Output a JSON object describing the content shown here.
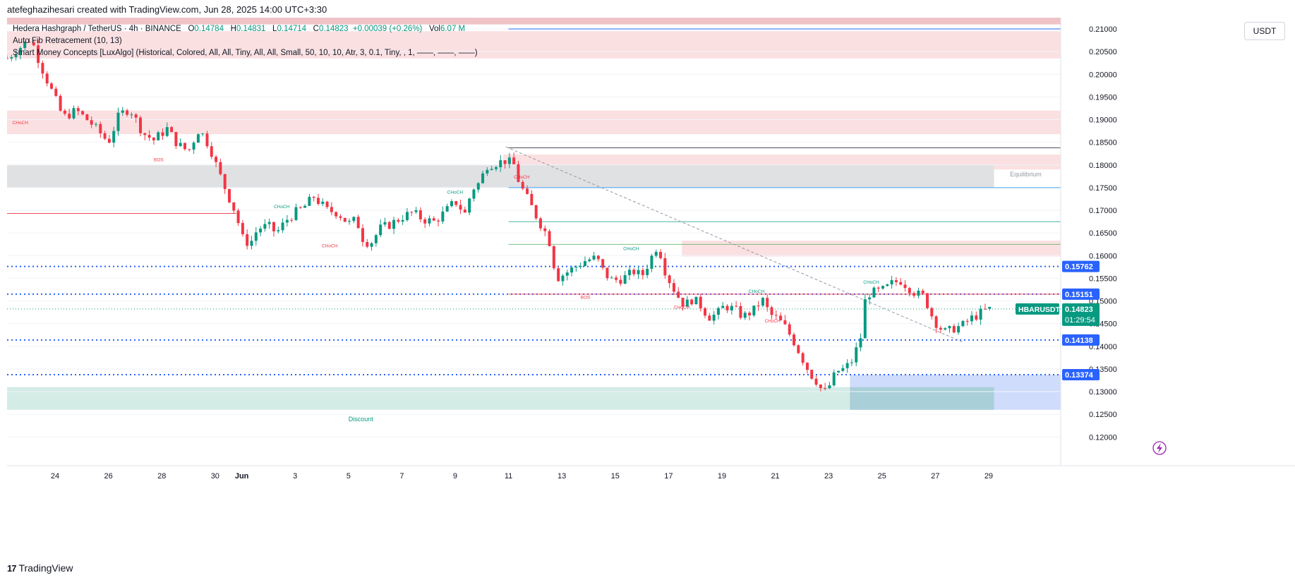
{
  "header": {
    "credit": "atefeghazihesari created with TradingView.com, Jun 28, 2025 14:00 UTC+3:30"
  },
  "legend": {
    "symbol": "Hedera Hashgraph / TetherUS · 4h · BINANCE",
    "o_label": "O",
    "o_value": "0.14784",
    "h_label": "H",
    "h_value": "0.14831",
    "l_label": "L",
    "l_value": "0.14714",
    "c_label": "C",
    "c_value": "0.14823",
    "change": "+0.00039 (+0.26%)",
    "vol_label": "Vol",
    "vol_value": "6.07 M",
    "indicator1": "Auto Fib Retracement (10, 13)",
    "indicator2": "Smart Money Concepts [LuxAlgo] (Historical, Colored, All, All, Tiny, All, All, Small, 50, 10, 10, Atr, 3, 0.1, Tiny, , 1, ——, ——, ——)"
  },
  "currency_button": "USDT",
  "branding": {
    "logo_text": "TradingView",
    "logo_mark": "17"
  },
  "colors": {
    "up": "#089981",
    "down": "#f23645",
    "supply_zone": "#f7c9cc",
    "demand_zone": "#c8e8e1",
    "equilibrium_zone": "#d9dadd",
    "price_tag": "#2962ff",
    "current_tag": "#089981"
  },
  "chart_data": {
    "type": "candlestick",
    "title": "HBARUSDT 4h",
    "ylim": [
      0.116,
      0.2125
    ],
    "y_ticks": [
      "0.21000",
      "0.20500",
      "0.20000",
      "0.19500",
      "0.19000",
      "0.18500",
      "0.18000",
      "0.17500",
      "0.17000",
      "0.16500",
      "0.16000",
      "0.15500",
      "0.15000",
      "0.14500",
      "0.14000",
      "0.13500",
      "0.13000",
      "0.12500",
      "0.12000"
    ],
    "x_ticks": [
      {
        "label": "24",
        "day": 0
      },
      {
        "label": "26",
        "day": 2
      },
      {
        "label": "28",
        "day": 4
      },
      {
        "label": "30",
        "day": 6
      },
      {
        "label": "Jun",
        "day": 7
      },
      {
        "label": "3",
        "day": 9
      },
      {
        "label": "5",
        "day": 11
      },
      {
        "label": "7",
        "day": 13
      },
      {
        "label": "9",
        "day": 15
      },
      {
        "label": "11",
        "day": 17
      },
      {
        "label": "13",
        "day": 19
      },
      {
        "label": "15",
        "day": 21
      },
      {
        "label": "17",
        "day": 23
      },
      {
        "label": "19",
        "day": 25
      },
      {
        "label": "21",
        "day": 27
      },
      {
        "label": "23",
        "day": 29
      },
      {
        "label": "25",
        "day": 31
      },
      {
        "label": "27",
        "day": 33
      },
      {
        "label": "29",
        "day": 35
      }
    ],
    "x_domain_days": [
      -1.8,
      37.7
    ],
    "close_path": [
      [
        -1.8,
        0.2035
      ],
      [
        -1.3,
        0.206
      ],
      [
        -0.9,
        0.208
      ],
      [
        -0.7,
        0.2045
      ],
      [
        -0.4,
        0.2
      ],
      [
        -0.1,
        0.196
      ],
      [
        0.3,
        0.1905
      ],
      [
        0.8,
        0.192
      ],
      [
        1.3,
        0.1895
      ],
      [
        1.7,
        0.187
      ],
      [
        2.0,
        0.185
      ],
      [
        2.4,
        0.191
      ],
      [
        2.8,
        0.1925
      ],
      [
        3.3,
        0.187
      ],
      [
        3.7,
        0.1855
      ],
      [
        4.2,
        0.188
      ],
      [
        4.6,
        0.1845
      ],
      [
        5.0,
        0.183
      ],
      [
        5.4,
        0.188
      ],
      [
        5.8,
        0.184
      ],
      [
        6.1,
        0.179
      ],
      [
        6.4,
        0.1745
      ],
      [
        6.8,
        0.169
      ],
      [
        7.0,
        0.164
      ],
      [
        7.3,
        0.1625
      ],
      [
        7.6,
        0.166
      ],
      [
        8.0,
        0.1665
      ],
      [
        8.3,
        0.165
      ],
      [
        8.7,
        0.168
      ],
      [
        9.0,
        0.1695
      ],
      [
        9.3,
        0.1705
      ],
      [
        9.7,
        0.173
      ],
      [
        10.2,
        0.17
      ],
      [
        10.6,
        0.1695
      ],
      [
        11.0,
        0.167
      ],
      [
        11.3,
        0.168
      ],
      [
        11.5,
        0.164
      ],
      [
        11.8,
        0.1625
      ],
      [
        12.2,
        0.166
      ],
      [
        12.6,
        0.167
      ],
      [
        13.0,
        0.1685
      ],
      [
        13.4,
        0.1695
      ],
      [
        13.8,
        0.168
      ],
      [
        14.2,
        0.1675
      ],
      [
        14.6,
        0.1695
      ],
      [
        15.0,
        0.172
      ],
      [
        15.4,
        0.169
      ],
      [
        15.6,
        0.1745
      ],
      [
        15.9,
        0.176
      ],
      [
        16.2,
        0.18
      ],
      [
        16.6,
        0.1805
      ],
      [
        16.9,
        0.181
      ],
      [
        17.2,
        0.18
      ],
      [
        17.4,
        0.176
      ],
      [
        17.8,
        0.1715
      ],
      [
        18.1,
        0.168
      ],
      [
        18.5,
        0.164
      ],
      [
        18.8,
        0.155
      ],
      [
        19.1,
        0.156
      ],
      [
        19.5,
        0.1575
      ],
      [
        19.9,
        0.159
      ],
      [
        20.3,
        0.1595
      ],
      [
        20.6,
        0.156
      ],
      [
        20.9,
        0.1545
      ],
      [
        21.3,
        0.155
      ],
      [
        21.7,
        0.1565
      ],
      [
        22.0,
        0.1555
      ],
      [
        22.3,
        0.159
      ],
      [
        22.6,
        0.1625
      ],
      [
        22.9,
        0.156
      ],
      [
        23.3,
        0.1515
      ],
      [
        23.6,
        0.149
      ],
      [
        23.9,
        0.1505
      ],
      [
        24.2,
        0.149
      ],
      [
        24.5,
        0.1465
      ],
      [
        24.8,
        0.147
      ],
      [
        25.1,
        0.149
      ],
      [
        25.5,
        0.148
      ],
      [
        25.8,
        0.1465
      ],
      [
        26.2,
        0.148
      ],
      [
        26.5,
        0.1505
      ],
      [
        26.8,
        0.147
      ],
      [
        27.1,
        0.146
      ],
      [
        27.4,
        0.144
      ],
      [
        27.7,
        0.141
      ],
      [
        28.0,
        0.1375
      ],
      [
        28.3,
        0.134
      ],
      [
        28.6,
        0.132
      ],
      [
        28.8,
        0.1295
      ],
      [
        29.0,
        0.131
      ],
      [
        29.3,
        0.1345
      ],
      [
        29.6,
        0.135
      ],
      [
        29.9,
        0.137
      ],
      [
        30.2,
        0.142
      ],
      [
        30.4,
        0.1515
      ],
      [
        30.8,
        0.152
      ],
      [
        31.1,
        0.1525
      ],
      [
        31.4,
        0.154
      ],
      [
        31.7,
        0.1545
      ],
      [
        32.0,
        0.153
      ],
      [
        32.3,
        0.1515
      ],
      [
        32.6,
        0.151
      ],
      [
        32.8,
        0.1475
      ],
      [
        33.1,
        0.1445
      ],
      [
        33.4,
        0.143
      ],
      [
        33.7,
        0.144
      ],
      [
        34.0,
        0.1445
      ],
      [
        34.3,
        0.146
      ],
      [
        34.6,
        0.147
      ],
      [
        34.9,
        0.148
      ],
      [
        35.1,
        0.1482
      ]
    ],
    "zones": [
      {
        "name": "supply-zone-top",
        "y1": 0.2095,
        "y2": 0.2035,
        "d1": -1.8,
        "d2": 37.7,
        "color": "#fbe0e2"
      },
      {
        "name": "supply-zone-header",
        "y1": 0.2125,
        "y2": 0.211,
        "d1": -1.8,
        "d2": 37.7,
        "color": "#f0c3c7"
      },
      {
        "name": "supply-zone-2",
        "y1": 0.192,
        "y2": 0.1868,
        "d1": -1.8,
        "d2": 37.7,
        "color": "#fbe0e2"
      },
      {
        "name": "supply-zone-3",
        "y1": 0.1823,
        "y2": 0.179,
        "d1": 16.8,
        "d2": 37.7,
        "color": "#fbe0e2"
      },
      {
        "name": "equilibrium-zone",
        "y1": 0.18,
        "y2": 0.175,
        "d1": -1.8,
        "d2": 35.2,
        "color": "#e0e1e3"
      },
      {
        "name": "supply-zone-4",
        "y1": 0.1633,
        "y2": 0.1598,
        "d1": 23.5,
        "d2": 37.7,
        "color": "#fbe0e2"
      },
      {
        "name": "discount-zone",
        "y1": 0.131,
        "y2": 0.126,
        "d1": -1.8,
        "d2": 35.2,
        "color": "#d4ece6"
      },
      {
        "name": "position-zone-blue",
        "y1": 0.1337,
        "y2": 0.126,
        "d1": 29.8,
        "d2": 37.7,
        "color": "#cfdcfb"
      },
      {
        "name": "position-zone-teal",
        "y1": 0.131,
        "y2": 0.126,
        "d1": 29.8,
        "d2": 35.2,
        "color": "#a9cfd8"
      }
    ],
    "levels": [
      {
        "name": "fib-level-0",
        "y": 0.21,
        "d1": 17.0,
        "color": "#2962ff",
        "dash": "",
        "width": 1
      },
      {
        "name": "fib-level-1",
        "y": 0.1838,
        "d1": 17.0,
        "color": "#131722",
        "dash": "",
        "width": 0.8
      },
      {
        "name": "fib-level-2",
        "y": 0.175,
        "d1": 17.0,
        "color": "#2196f3",
        "dash": "",
        "width": 0.8
      },
      {
        "name": "fib-level-3",
        "y": 0.1675,
        "d1": 17.0,
        "color": "#089981",
        "dash": "",
        "width": 0.8
      },
      {
        "name": "fib-level-4",
        "y": 0.1625,
        "d1": 17.0,
        "color": "#4caf50",
        "dash": "",
        "width": 0.8
      },
      {
        "name": "red-level-left",
        "y": 0.1693,
        "d1": -1.8,
        "d2": 6.8,
        "color": "#f23645",
        "dash": "",
        "width": 0.8
      },
      {
        "name": "level-0.15762",
        "y": 0.15762,
        "d1": -1.8,
        "color": "#2962ff",
        "dash": "2,4",
        "width": 2
      },
      {
        "name": "level-0.15151",
        "y": 0.15151,
        "d1": -1.8,
        "color": "#2962ff",
        "dash": "2,4",
        "width": 2
      },
      {
        "name": "level-0.15151-red",
        "y": 0.15151,
        "d1": 17.0,
        "color": "#f23645",
        "dash": "",
        "width": 0.8
      },
      {
        "name": "level-0.14138",
        "y": 0.14138,
        "d1": -1.8,
        "color": "#2962ff",
        "dash": "2,4",
        "width": 2
      },
      {
        "name": "level-0.13374",
        "y": 0.13374,
        "d1": -1.8,
        "color": "#2962ff",
        "dash": "2,4",
        "width": 2
      },
      {
        "name": "current-price-line",
        "y": 0.14823,
        "d1": -1.8,
        "color": "#089981",
        "dash": "1,3",
        "width": 1
      }
    ],
    "trend_line": [
      [
        16.9,
        0.184
      ],
      [
        34.0,
        0.141
      ]
    ],
    "annotations": [
      {
        "text": "CHoCH",
        "day": -1.6,
        "y": 0.189,
        "color": "#f23645"
      },
      {
        "text": "BOS",
        "day": 3.7,
        "y": 0.1808,
        "color": "#f23645"
      },
      {
        "text": "CHoCH",
        "day": 8.2,
        "y": 0.1705,
        "color": "#089981"
      },
      {
        "text": "CHoCH",
        "day": 10.0,
        "y": 0.1618,
        "color": "#f23645"
      },
      {
        "text": "CHoCH",
        "day": 14.7,
        "y": 0.1737,
        "color": "#089981"
      },
      {
        "text": "CHoCH",
        "day": 17.2,
        "y": 0.177,
        "color": "#f23645"
      },
      {
        "text": "CHoCH",
        "day": 21.3,
        "y": 0.1612,
        "color": "#089981"
      },
      {
        "text": "BOS",
        "day": 19.7,
        "y": 0.1505,
        "color": "#f23645"
      },
      {
        "text": "CHoCH",
        "day": 23.2,
        "y": 0.1483,
        "color": "#f23645"
      },
      {
        "text": "CHoCH",
        "day": 26.0,
        "y": 0.1518,
        "color": "#089981"
      },
      {
        "text": "CHoCH",
        "day": 26.6,
        "y": 0.1453,
        "color": "#f23645"
      },
      {
        "text": "CHoCH",
        "day": 30.3,
        "y": 0.1538,
        "color": "#089981"
      },
      {
        "text": "Equilibrium",
        "day": 35.8,
        "y": 0.1775,
        "color": "#9598a1"
      },
      {
        "text": "Discount",
        "day": 11.0,
        "y": 0.1235,
        "color": "#089981"
      }
    ],
    "price_tags": [
      {
        "text": "0.15762",
        "y": 0.15762,
        "color": "#2962ff"
      },
      {
        "text": "0.15151",
        "y": 0.15151,
        "color": "#2962ff"
      },
      {
        "text": "0.14138",
        "y": 0.14138,
        "color": "#2962ff"
      },
      {
        "text": "0.13374",
        "y": 0.13374,
        "color": "#2962ff"
      }
    ],
    "current_price": {
      "symbol": "HBARUSDT",
      "price": "0.14823",
      "countdown": "01:29:54",
      "y": 0.14823
    },
    "y_axis_label_over": "0.15000"
  }
}
